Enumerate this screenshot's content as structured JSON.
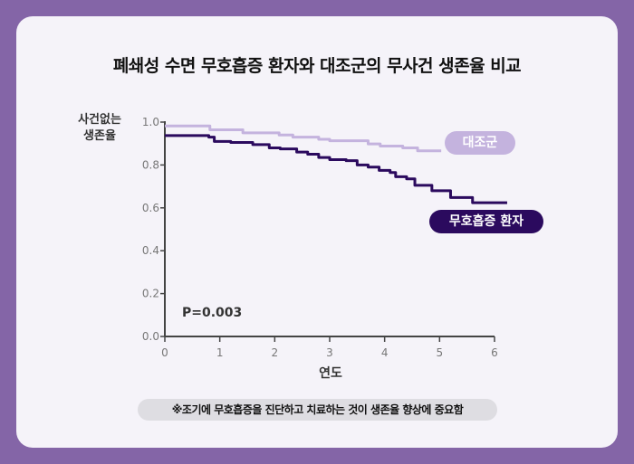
{
  "chart_data": {
    "type": "line",
    "title": "폐쇄성 수면 무호흡증 환자와 대조군의 무사건 생존율 비교",
    "xlabel": "연도",
    "ylabel": "사건없는 생존율",
    "xlim": [
      0,
      6
    ],
    "ylim": [
      0,
      1.0
    ],
    "xticks": [
      "0",
      "1",
      "2",
      "3",
      "4",
      "5",
      "6"
    ],
    "yticks": [
      "0.0",
      "0.2",
      "0.4",
      "0.6",
      "0.8",
      "1.0"
    ],
    "grid": false,
    "step": true,
    "annotation": "P=0.003",
    "series": [
      {
        "name": "대조군",
        "color": "#c4b3de",
        "x": [
          0,
          0.82,
          1.42,
          2.08,
          2.33,
          2.8,
          3.0,
          3.7,
          3.92,
          4.33,
          4.6,
          5.03
        ],
        "y": [
          0.982,
          0.964,
          0.95,
          0.94,
          0.93,
          0.92,
          0.913,
          0.898,
          0.888,
          0.88,
          0.866,
          0.866
        ]
      },
      {
        "name": "무호흡증 환자",
        "color": "#2b0a5e",
        "x": [
          0,
          0.8,
          0.9,
          1.2,
          1.6,
          1.9,
          2.1,
          2.4,
          2.6,
          2.8,
          3.0,
          3.3,
          3.5,
          3.7,
          3.9,
          4.1,
          4.2,
          4.4,
          4.55,
          4.86,
          5.2,
          5.6,
          6.23
        ],
        "y": [
          0.937,
          0.93,
          0.91,
          0.905,
          0.895,
          0.88,
          0.875,
          0.86,
          0.85,
          0.835,
          0.825,
          0.82,
          0.8,
          0.79,
          0.775,
          0.765,
          0.745,
          0.735,
          0.705,
          0.68,
          0.648,
          0.624,
          0.624
        ]
      }
    ]
  },
  "footnote": "※조기에 무호흡증을 진단하고 치료하는 것이 생존율 향상에 중요함"
}
